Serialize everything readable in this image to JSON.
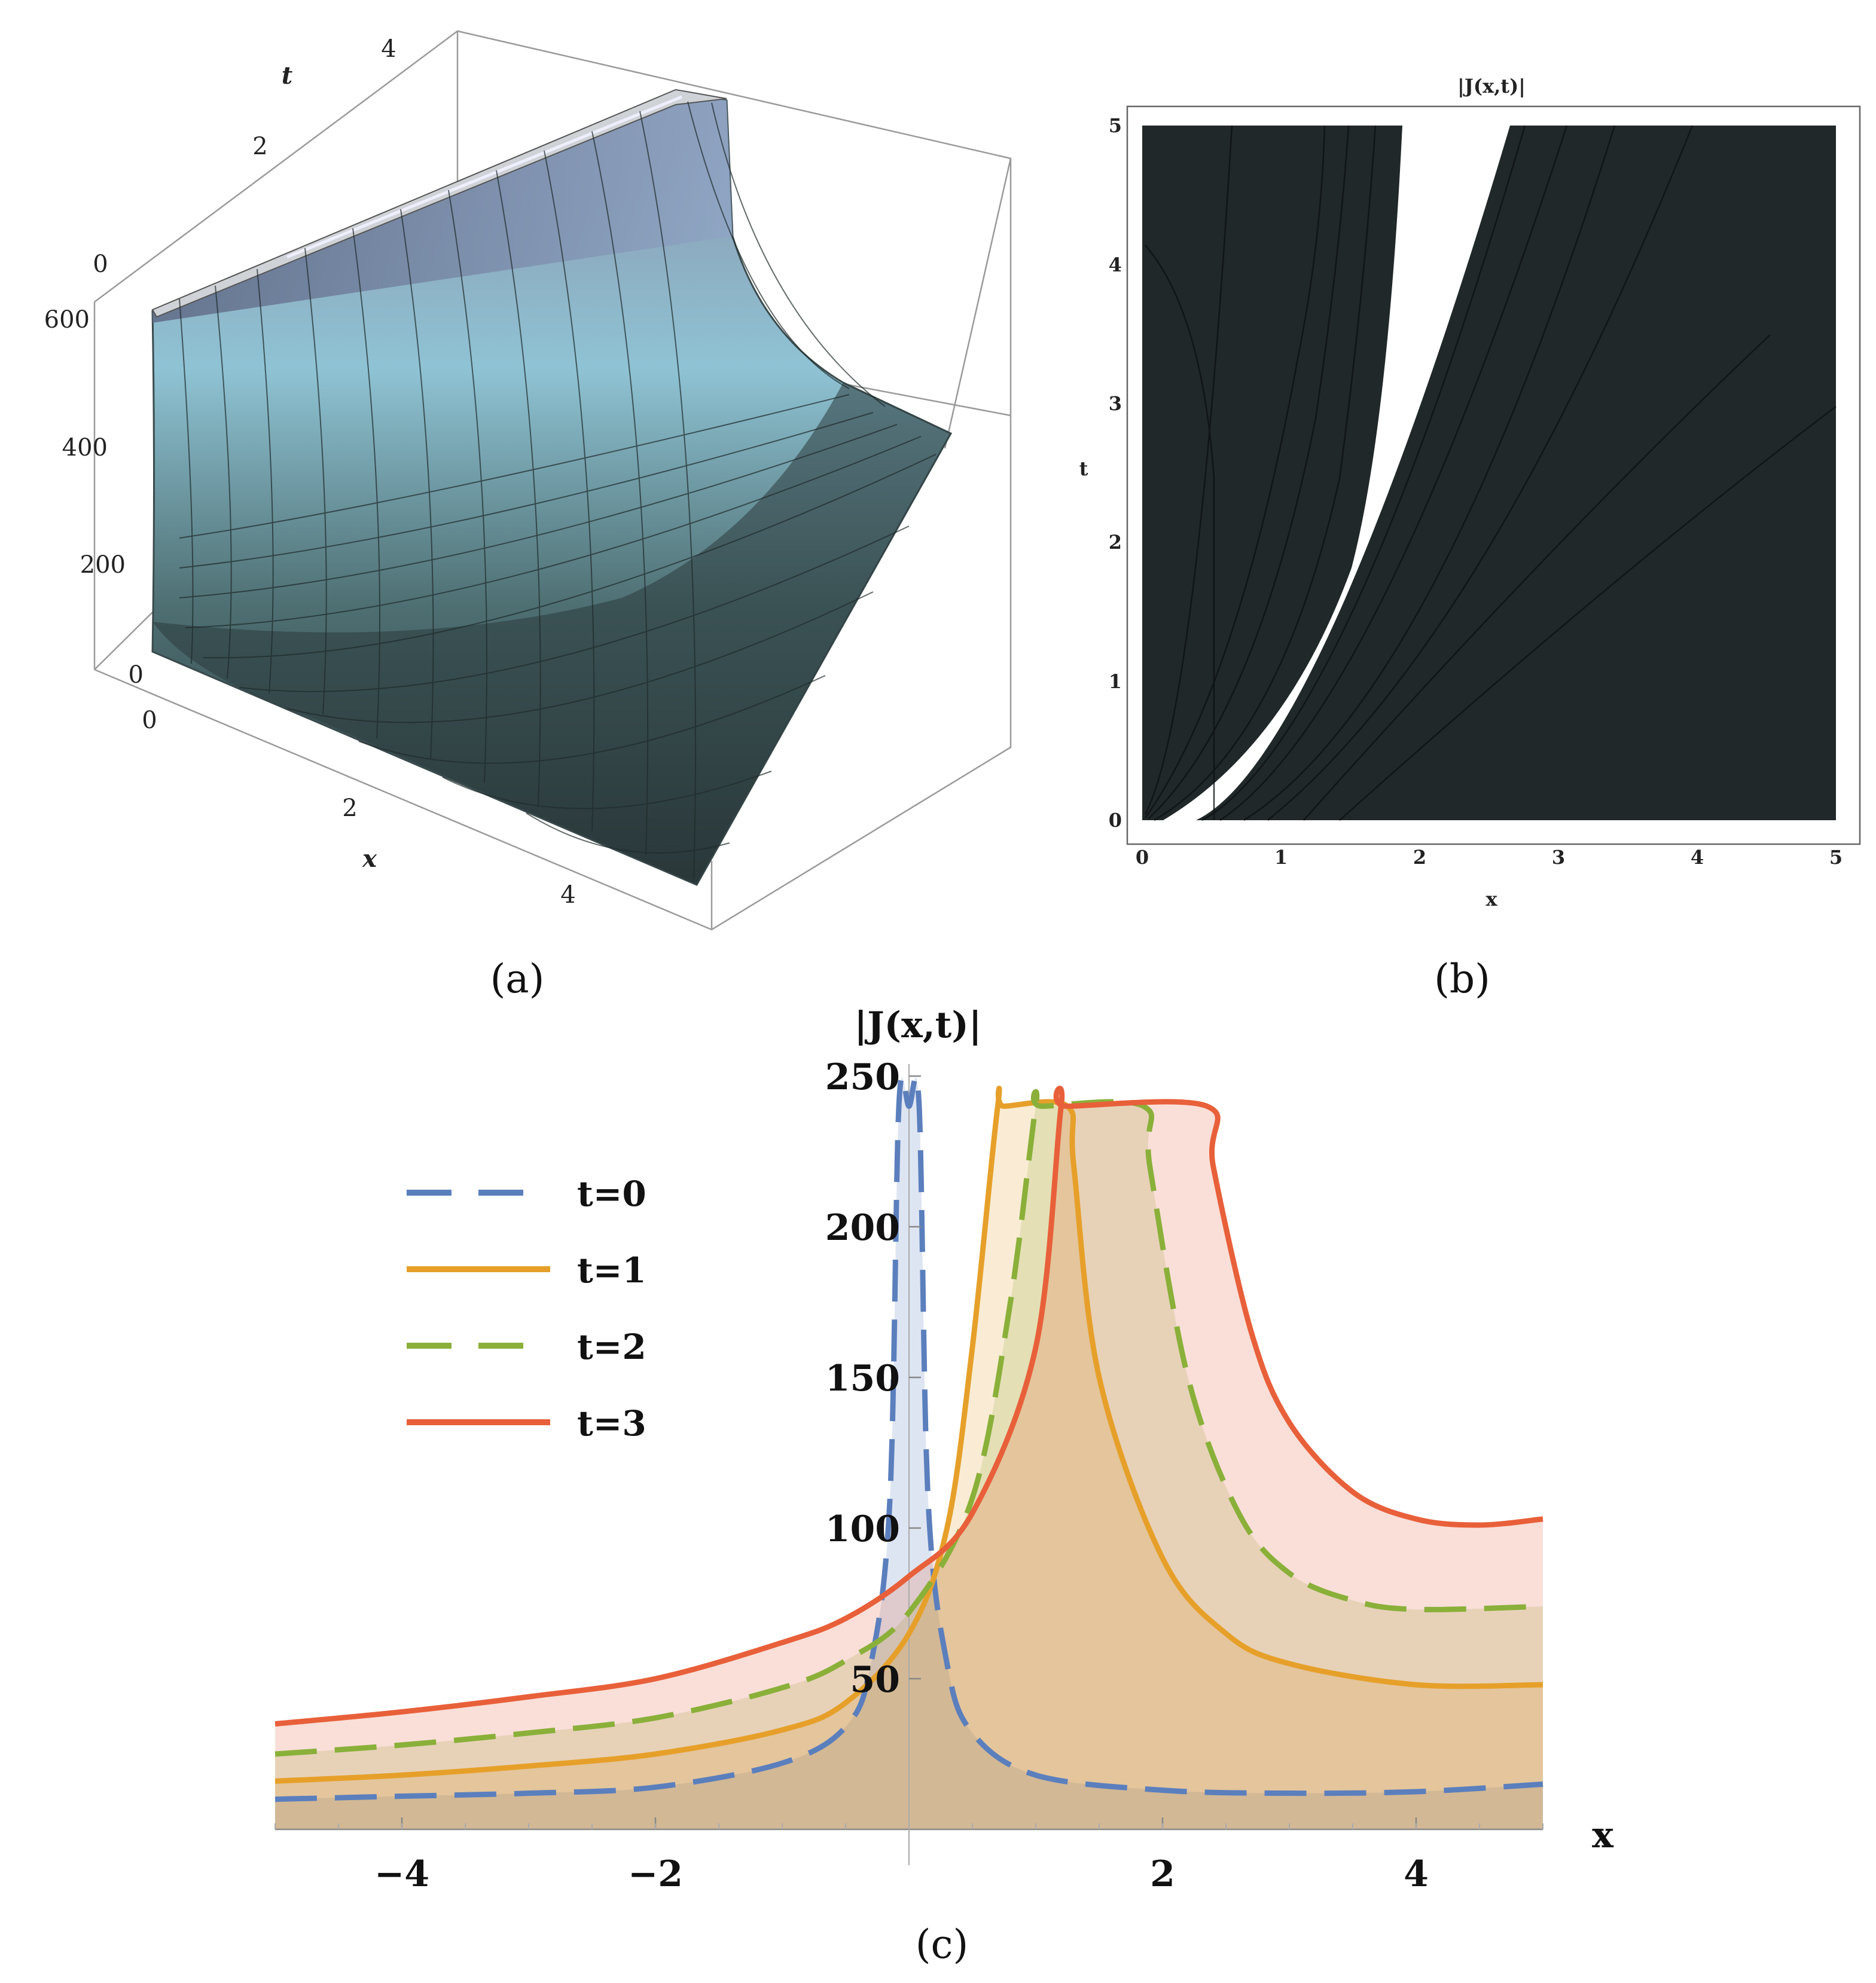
{
  "panels": {
    "a": {
      "caption": "(a)",
      "axis_labels": {
        "x": "x",
        "t": "t"
      },
      "t_ticks": [
        "0",
        "2",
        "4"
      ],
      "x_ticks": [
        "0",
        "2",
        "4"
      ],
      "z_ticks": [
        "0",
        "200",
        "400",
        "600"
      ]
    },
    "b": {
      "caption": "(b)",
      "title": "|J(x,t)|",
      "xlabel": "x",
      "ylabel": "t",
      "x_ticks": [
        "0",
        "1",
        "2",
        "3",
        "4",
        "5"
      ],
      "y_ticks": [
        "0",
        "1",
        "2",
        "3",
        "4",
        "5"
      ]
    },
    "c": {
      "caption": "(c)"
    }
  },
  "colors": {
    "t0": "#5b7fbd",
    "t1": "#e6a02a",
    "t2": "#8ab03a",
    "t3": "#e8603a",
    "dark_region": "#212829",
    "surface_top": "#8fc3d4",
    "surface_bottom": "#2c3b3c"
  },
  "chart_data": {
    "type": "line",
    "title": "|J(x,t)|",
    "xlabel": "x",
    "ylabel": "",
    "xlim": [
      -5,
      5
    ],
    "ylim": [
      0,
      250
    ],
    "clip_value": 240,
    "x_ticks": [
      -4,
      -2,
      2,
      4
    ],
    "x_tick_labels": [
      "−4",
      "−2",
      "2",
      "4"
    ],
    "y_ticks": [
      50,
      100,
      150,
      200,
      250
    ],
    "y_tick_labels": [
      "50",
      "100",
      "150",
      "200",
      "250"
    ],
    "legend": {
      "position": "top-left"
    },
    "series": [
      {
        "name": "t=0",
        "style": "dashed",
        "x": [
          -5,
          -4,
          -3,
          -2,
          -1,
          -0.5,
          -0.3,
          -0.15,
          -0.08,
          0,
          0.08,
          0.15,
          0.3,
          0.5,
          1,
          2,
          3,
          4,
          5
        ],
        "values": [
          10,
          11,
          12,
          14,
          22,
          34,
          55,
          110,
          240,
          240,
          240,
          110,
          55,
          32,
          18,
          13,
          12,
          12.5,
          15
        ]
      },
      {
        "name": "t=1",
        "style": "solid",
        "x": [
          -5,
          -4,
          -3,
          -2,
          -1,
          -0.5,
          0,
          0.3,
          0.5,
          0.7,
          0.75,
          1.25,
          1.3,
          1.5,
          2,
          2.5,
          3,
          4,
          5
        ],
        "values": [
          16,
          18,
          21,
          25,
          33,
          42,
          65,
          100,
          160,
          240,
          240,
          240,
          220,
          150,
          90,
          65,
          55,
          48,
          48
        ]
      },
      {
        "name": "t=2",
        "style": "dashed",
        "x": [
          -5,
          -4,
          -3,
          -2,
          -1,
          -0.5,
          0,
          0.5,
          0.8,
          1.0,
          1.05,
          1.85,
          1.9,
          2.2,
          2.6,
          3,
          3.5,
          4,
          5
        ],
        "values": [
          25,
          28,
          32,
          37,
          47,
          56,
          72,
          110,
          175,
          240,
          240,
          240,
          220,
          150,
          105,
          85,
          76,
          73,
          74
        ]
      },
      {
        "name": "t=3",
        "style": "solid",
        "x": [
          -5,
          -4,
          -3,
          -2,
          -1,
          -0.5,
          0,
          0.5,
          1.0,
          1.2,
          1.25,
          2.35,
          2.4,
          2.7,
          3,
          3.5,
          4,
          4.5,
          5
        ],
        "values": [
          35,
          39,
          44,
          50,
          62,
          70,
          84,
          105,
          160,
          240,
          240,
          240,
          220,
          165,
          135,
          112,
          103,
          101,
          103
        ]
      }
    ]
  }
}
